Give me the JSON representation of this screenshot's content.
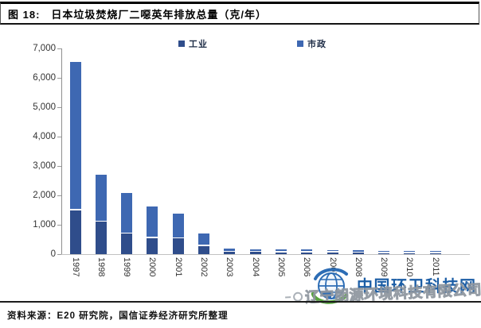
{
  "figure": {
    "label": "图 18:",
    "title": "日本垃圾焚烧厂二噁英年排放总量（克/年）"
  },
  "chart_data": {
    "type": "bar",
    "stacked": true,
    "title": "日本垃圾焚烧厂二噁英年排放总量（克/年）",
    "categories": [
      "1997",
      "1998",
      "1999",
      "2000",
      "2001",
      "2002",
      "2003",
      "2004",
      "2005",
      "2006",
      "2007",
      "2008",
      "2009",
      "2010",
      "2011"
    ],
    "series": [
      {
        "name": "工业",
        "color": "#2F4D8B",
        "values": [
          1500,
          1100,
          690,
          550,
          530,
          280,
          75,
          75,
          65,
          60,
          55,
          45,
          30,
          30,
          25
        ]
      },
      {
        "name": "市政",
        "color": "#3E68B2",
        "values": [
          5000,
          1550,
          1350,
          1020,
          810,
          370,
          70,
          60,
          65,
          50,
          50,
          45,
          40,
          30,
          30
        ]
      }
    ],
    "xlabel": "",
    "ylabel": "",
    "ylim": [
      0,
      7000
    ],
    "ytick_step": 1000,
    "ytick_labels": [
      "0",
      "1,000",
      "2,000",
      "3,000",
      "4,000",
      "5,000",
      "6,000",
      "7,000"
    ],
    "grid": false,
    "legend_position": "top",
    "bar_separator_color": "#ffffff"
  },
  "watermark": {
    "logo": "globe-icon",
    "site_name": "中国环卫科技网",
    "site_color": "#1B5DA5",
    "company": "辽宁朗源环境科技有限公司",
    "company_stroke_color": "#969DA6"
  },
  "source": {
    "text": "资料来源：E20 研究院，国信证券经济研究所整理"
  }
}
